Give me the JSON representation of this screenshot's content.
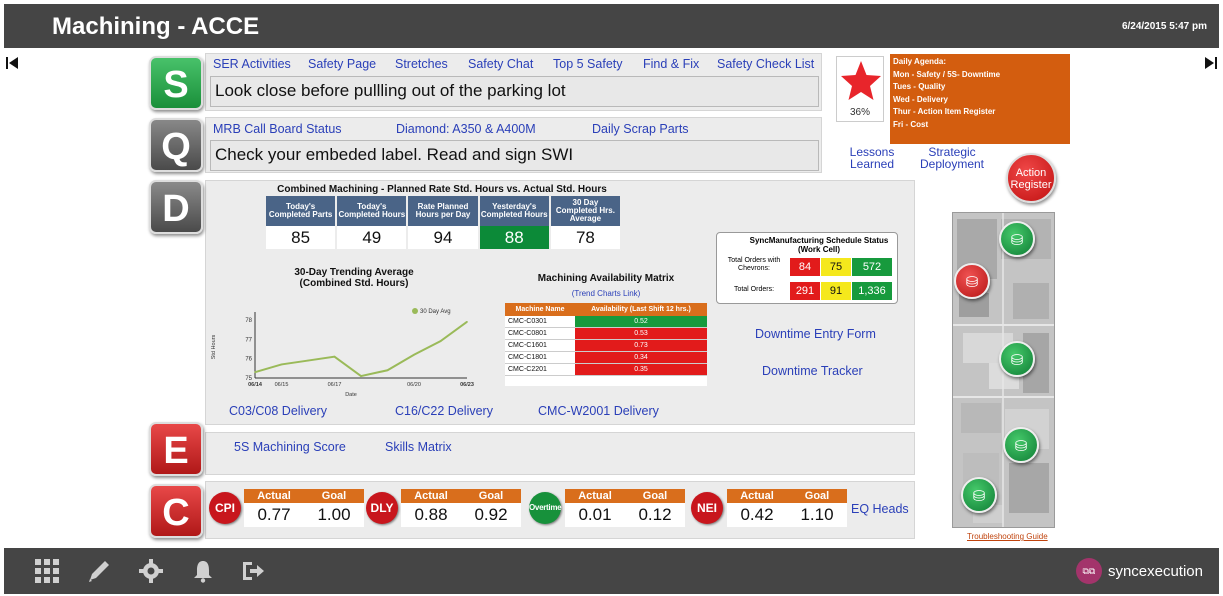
{
  "header": {
    "title": "Machining - ACCE",
    "datetime": "6/24/2015 5:47 pm"
  },
  "nav": {
    "prev_icon": "skip-back-icon",
    "next_icon": "skip-forward-icon"
  },
  "sections": {
    "s": {
      "letter": "S",
      "links": [
        "SER Activities",
        "Safety Page",
        "Stretches",
        "Safety Chat",
        "Top 5 Safety",
        "Find & Fix",
        "Safety Check List"
      ],
      "message": "Look close before pullling out of the parking lot"
    },
    "q": {
      "letter": "Q",
      "links": [
        "MRB Call Board Status",
        "Diamond: A350 & A400M",
        "Daily Scrap Parts"
      ],
      "message": "Check your embeded label. Read and sign SWI"
    },
    "d": {
      "letter": "D",
      "links": [
        "C03/C08 Delivery",
        "C16/C22 Delivery",
        "CMC-W2001 Delivery"
      ]
    },
    "e": {
      "letter": "E",
      "links": [
        "5S Machining Score",
        "Skills Matrix"
      ]
    },
    "c": {
      "letter": "C",
      "eq_link": "EQ Heads"
    }
  },
  "star": {
    "percent": "36%",
    "icon": "star-icon",
    "color": "#e8252b"
  },
  "agenda": {
    "title": "Daily Agenda:",
    "lines": [
      "Mon - Safety / 5S- Downtime",
      "Tues - Quality",
      "Wed - Delivery",
      "Thur - Action Item Register",
      "Fri - Cost"
    ]
  },
  "side_links": {
    "lessons": "Lessons Learned",
    "strategic": "Strategic Deployment",
    "action_register": "Action Register",
    "troubleshooting": "Troubleshooting Guide"
  },
  "hours_table": {
    "title": "Combined Machining - Planned Rate Std. Hours vs. Actual Std. Hours",
    "headers": [
      "Today's Completed Parts",
      "Today's Completed Hours",
      "Rate Planned Hours per Day",
      "Yesterday's Completed Hours",
      "30 Day Completed Hrs. Average"
    ],
    "values": [
      "85",
      "49",
      "94",
      "88",
      "78"
    ]
  },
  "chart_data": {
    "type": "line",
    "title": "30-Day Trending Average\n(Combined Std. Hours)",
    "xlabel": "Date",
    "ylabel": "Std Hours",
    "x": [
      "06/14",
      "06/15",
      "06/16",
      "06/17",
      "06/18",
      "06/19",
      "06/20",
      "06/21",
      "06/23"
    ],
    "xticks": [
      "06/14",
      "06/15",
      "06/17",
      "06/20",
      "06/23"
    ],
    "yticks": [
      "75",
      "76",
      "77",
      "78"
    ],
    "ylim": [
      75,
      78.2
    ],
    "series": [
      {
        "name": "30 Day Avg",
        "values": [
          75.3,
          75.7,
          75.9,
          76.1,
          75.1,
          75.4,
          76.2,
          76.9,
          77.9
        ]
      }
    ],
    "legend": "top-right",
    "color": "#9aba59"
  },
  "matrix": {
    "title": "Machining Availability Matrix",
    "link": "(Trend Charts Link)",
    "headers": [
      "Machine Name",
      "Availability (Last Shift 12 hrs.)"
    ],
    "rows": [
      {
        "name": "CMC-C0301",
        "value": "0.52",
        "status": "green"
      },
      {
        "name": "CMC-C0801",
        "value": "0.53",
        "status": "red"
      },
      {
        "name": "CMC-C1601",
        "value": "0.73",
        "status": "red"
      },
      {
        "name": "CMC-C1801",
        "value": "0.34",
        "status": "red"
      },
      {
        "name": "CMC-C2201",
        "value": "0.35",
        "status": "red"
      }
    ]
  },
  "schedule": {
    "title": "SyncManufacturing Schedule Status (Work Cell)",
    "rows": [
      {
        "label": "Total Orders with Chevrons:",
        "red": "84",
        "yellow": "75",
        "green": "572"
      },
      {
        "label": "Total Orders:",
        "red": "291",
        "yellow": "91",
        "green": "1,336"
      }
    ]
  },
  "downtime": {
    "entry": "Downtime Entry Form",
    "tracker": "Downtime Tracker"
  },
  "kpis": [
    {
      "badge": "CPI",
      "actual_label": "Actual",
      "goal_label": "Goal",
      "actual": "0.77",
      "goal": "1.00",
      "badge_color": "#c8161d"
    },
    {
      "badge": "DLY",
      "actual_label": "Actual",
      "goal_label": "Goal",
      "actual": "0.88",
      "goal": "0.92",
      "badge_color": "#c8161d"
    },
    {
      "badge": "Overtime",
      "actual_label": "Actual",
      "goal_label": "Goal",
      "actual": "0.01",
      "goal": "0.12",
      "badge_color": "#17913b"
    },
    {
      "badge": "NEI",
      "actual_label": "Actual",
      "goal_label": "Goal",
      "actual": "0.42",
      "goal": "1.10",
      "badge_color": "#c8161d"
    }
  ],
  "floor_map": {
    "pin_icon": "machine-pin-icon",
    "pins": [
      "green",
      "red",
      "green",
      "green",
      "green"
    ]
  },
  "bottom_bar": {
    "icons": [
      "grid-icon",
      "pencil-icon",
      "gear-icon",
      "bell-icon",
      "logout-icon"
    ],
    "brand": "syncexecution"
  }
}
